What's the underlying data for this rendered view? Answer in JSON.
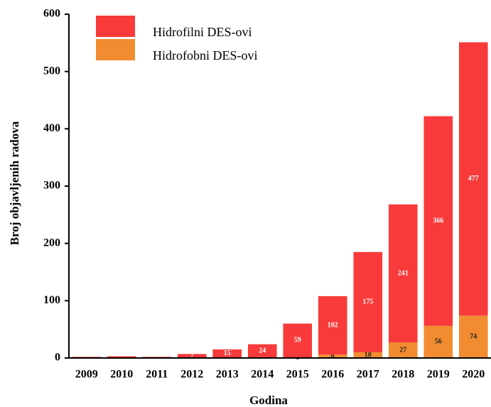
{
  "chart_data": {
    "type": "stacked_bar",
    "x_label": "Godina",
    "y_label": "Broj objavljenih radova",
    "categories": [
      "2009",
      "2010",
      "2011",
      "2012",
      "2013",
      "2014",
      "2015",
      "2016",
      "2017",
      "2018",
      "2019",
      "2020"
    ],
    "series": [
      {
        "name": "Hidrofobni DES-ovi",
        "color": "#f28c30",
        "values": [
          0,
          0,
          0,
          0,
          0,
          0,
          1,
          6,
          10,
          27,
          56,
          74
        ],
        "value_labels": [
          null,
          null,
          null,
          null,
          null,
          null,
          "1",
          "6",
          "10",
          "27",
          "56",
          "74"
        ],
        "label_color": "#222"
      },
      {
        "name": "Hidrofilni DES-ovi",
        "color": "#f83a3a",
        "values": [
          2,
          3,
          2,
          7,
          15,
          24,
          59,
          102,
          175,
          241,
          366,
          477
        ],
        "value_labels": [
          null,
          null,
          null,
          "7",
          "15",
          "24",
          "59",
          "102",
          "175",
          "241",
          "366",
          "477"
        ],
        "label_color": "#fff"
      }
    ],
    "ylim": [
      0,
      600
    ],
    "yticks": [
      0,
      100,
      200,
      300,
      400,
      500,
      600
    ]
  }
}
